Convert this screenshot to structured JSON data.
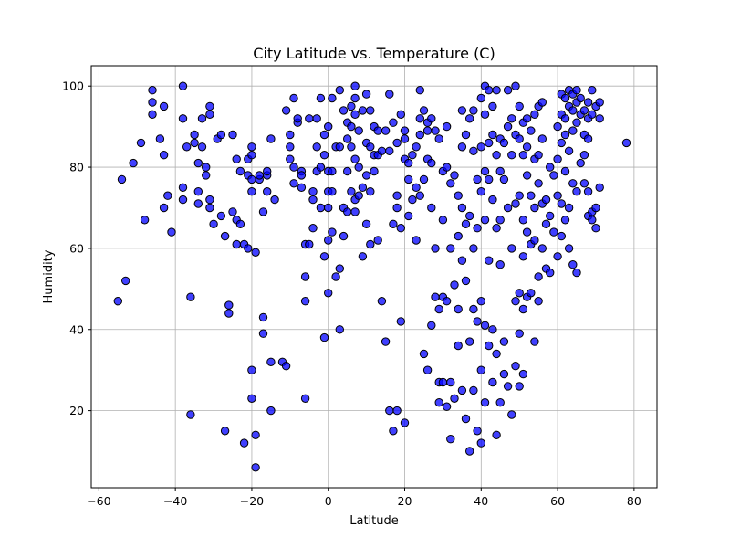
{
  "chart_data": {
    "type": "scatter",
    "title": "City Latitude vs. Temperature (C)",
    "xlabel": "Latitude",
    "ylabel": "Humidity",
    "xlim": [
      -62,
      86
    ],
    "ylim": [
      1,
      105
    ],
    "xticks": [
      -60,
      -40,
      -20,
      0,
      20,
      40,
      60,
      80
    ],
    "yticks": [
      20,
      40,
      60,
      80,
      100
    ],
    "grid": true,
    "marker_face": "#0000ff",
    "marker_alpha": 0.75,
    "marker_edge": "#000000",
    "points": [
      [
        -55,
        47
      ],
      [
        -54,
        77
      ],
      [
        -53,
        52
      ],
      [
        -51,
        81
      ],
      [
        -49,
        86
      ],
      [
        -48,
        67
      ],
      [
        -46,
        99
      ],
      [
        -46,
        93
      ],
      [
        -46,
        96
      ],
      [
        -44,
        87
      ],
      [
        -43,
        83
      ],
      [
        -43,
        95
      ],
      [
        -43,
        70
      ],
      [
        -42,
        73
      ],
      [
        -41,
        64
      ],
      [
        -38,
        100
      ],
      [
        -38,
        92
      ],
      [
        -38,
        75
      ],
      [
        -38,
        72
      ],
      [
        -37,
        85
      ],
      [
        -36,
        19
      ],
      [
        -36,
        48
      ],
      [
        -35,
        88
      ],
      [
        -35,
        86
      ],
      [
        -34,
        81
      ],
      [
        -34,
        74
      ],
      [
        -34,
        71
      ],
      [
        -33,
        92
      ],
      [
        -33,
        85
      ],
      [
        -32,
        80
      ],
      [
        -32,
        78
      ],
      [
        -31,
        95
      ],
      [
        -31,
        93
      ],
      [
        -31,
        70
      ],
      [
        -31,
        72
      ],
      [
        -30,
        66
      ],
      [
        -29,
        87
      ],
      [
        -28,
        68
      ],
      [
        -28,
        88
      ],
      [
        -27,
        63
      ],
      [
        -27,
        15
      ],
      [
        -26,
        46
      ],
      [
        -26,
        44
      ],
      [
        -25,
        88
      ],
      [
        -25,
        69
      ],
      [
        -24,
        61
      ],
      [
        -24,
        82
      ],
      [
        -24,
        67
      ],
      [
        -23,
        79
      ],
      [
        -23,
        66
      ],
      [
        -22,
        61
      ],
      [
        -22,
        12
      ],
      [
        -21,
        78
      ],
      [
        -21,
        82
      ],
      [
        -21,
        60
      ],
      [
        -20,
        77
      ],
      [
        -20,
        83
      ],
      [
        -20,
        85
      ],
      [
        -20,
        74
      ],
      [
        -20,
        30
      ],
      [
        -20,
        23
      ],
      [
        -19,
        59
      ],
      [
        -19,
        6
      ],
      [
        -19,
        14
      ],
      [
        -18,
        77
      ],
      [
        -18,
        78
      ],
      [
        -17,
        39
      ],
      [
        -17,
        43
      ],
      [
        -17,
        69
      ],
      [
        -16,
        78
      ],
      [
        -16,
        79
      ],
      [
        -16,
        74
      ],
      [
        -15,
        32
      ],
      [
        -15,
        20
      ],
      [
        -15,
        87
      ],
      [
        -14,
        72
      ],
      [
        -12,
        32
      ],
      [
        -11,
        31
      ],
      [
        -11,
        94
      ],
      [
        -10,
        88
      ],
      [
        -10,
        85
      ],
      [
        -10,
        82
      ],
      [
        -9,
        80
      ],
      [
        -9,
        76
      ],
      [
        -9,
        97
      ],
      [
        -8,
        91
      ],
      [
        -8,
        92
      ],
      [
        -7,
        79
      ],
      [
        -7,
        75
      ],
      [
        -7,
        78
      ],
      [
        -6,
        47
      ],
      [
        -6,
        23
      ],
      [
        -6,
        53
      ],
      [
        -6,
        61
      ],
      [
        -5,
        92
      ],
      [
        -5,
        61
      ],
      [
        -4,
        74
      ],
      [
        -4,
        72
      ],
      [
        -4,
        65
      ],
      [
        -3,
        85
      ],
      [
        -3,
        79
      ],
      [
        -3,
        92
      ],
      [
        -2,
        97
      ],
      [
        -2,
        80
      ],
      [
        -2,
        70
      ],
      [
        -1,
        88
      ],
      [
        -1,
        83
      ],
      [
        -1,
        38
      ],
      [
        -1,
        58
      ],
      [
        0,
        79
      ],
      [
        0,
        90
      ],
      [
        0,
        74
      ],
      [
        0,
        70
      ],
      [
        0,
        62
      ],
      [
        0,
        49
      ],
      [
        1,
        97
      ],
      [
        1,
        79
      ],
      [
        1,
        74
      ],
      [
        1,
        64
      ],
      [
        2,
        85
      ],
      [
        2,
        53
      ],
      [
        3,
        99
      ],
      [
        3,
        85
      ],
      [
        3,
        40
      ],
      [
        3,
        55
      ],
      [
        4,
        94
      ],
      [
        4,
        70
      ],
      [
        4,
        63
      ],
      [
        5,
        91
      ],
      [
        5,
        87
      ],
      [
        5,
        79
      ],
      [
        5,
        69
      ],
      [
        6,
        95
      ],
      [
        6,
        90
      ],
      [
        6,
        85
      ],
      [
        6,
        74
      ],
      [
        7,
        100
      ],
      [
        7,
        97
      ],
      [
        7,
        93
      ],
      [
        7,
        82
      ],
      [
        7,
        72
      ],
      [
        7,
        69
      ],
      [
        8,
        89
      ],
      [
        8,
        80
      ],
      [
        8,
        73
      ],
      [
        9,
        94
      ],
      [
        9,
        75
      ],
      [
        9,
        58
      ],
      [
        10,
        98
      ],
      [
        10,
        86
      ],
      [
        10,
        78
      ],
      [
        10,
        66
      ],
      [
        11,
        94
      ],
      [
        11,
        85
      ],
      [
        11,
        74
      ],
      [
        11,
        61
      ],
      [
        12,
        90
      ],
      [
        12,
        83
      ],
      [
        12,
        79
      ],
      [
        13,
        89
      ],
      [
        13,
        83
      ],
      [
        13,
        62
      ],
      [
        14,
        84
      ],
      [
        14,
        47
      ],
      [
        15,
        89
      ],
      [
        15,
        37
      ],
      [
        16,
        98
      ],
      [
        16,
        84
      ],
      [
        16,
        20
      ],
      [
        17,
        91
      ],
      [
        17,
        66
      ],
      [
        17,
        15
      ],
      [
        18,
        86
      ],
      [
        18,
        73
      ],
      [
        18,
        70
      ],
      [
        18,
        20
      ],
      [
        19,
        93
      ],
      [
        19,
        65
      ],
      [
        19,
        42
      ],
      [
        20,
        89
      ],
      [
        20,
        87
      ],
      [
        20,
        82
      ],
      [
        20,
        17
      ],
      [
        21,
        81
      ],
      [
        21,
        77
      ],
      [
        21,
        68
      ],
      [
        22,
        72
      ],
      [
        22,
        83
      ],
      [
        23,
        62
      ],
      [
        23,
        85
      ],
      [
        23,
        75
      ],
      [
        24,
        99
      ],
      [
        24,
        92
      ],
      [
        24,
        88
      ],
      [
        24,
        73
      ],
      [
        25,
        94
      ],
      [
        25,
        77
      ],
      [
        25,
        34
      ],
      [
        26,
        91
      ],
      [
        26,
        89
      ],
      [
        26,
        82
      ],
      [
        26,
        30
      ],
      [
        27,
        92
      ],
      [
        27,
        81
      ],
      [
        27,
        70
      ],
      [
        27,
        41
      ],
      [
        28,
        89
      ],
      [
        28,
        60
      ],
      [
        28,
        48
      ],
      [
        29,
        87
      ],
      [
        29,
        45
      ],
      [
        29,
        27
      ],
      [
        29,
        22
      ],
      [
        30,
        79
      ],
      [
        30,
        67
      ],
      [
        30,
        48
      ],
      [
        30,
        27
      ],
      [
        31,
        90
      ],
      [
        31,
        80
      ],
      [
        31,
        47
      ],
      [
        31,
        21
      ],
      [
        32,
        76
      ],
      [
        32,
        60
      ],
      [
        32,
        27
      ],
      [
        32,
        13
      ],
      [
        33,
        78
      ],
      [
        33,
        51
      ],
      [
        33,
        23
      ],
      [
        34,
        73
      ],
      [
        34,
        63
      ],
      [
        34,
        45
      ],
      [
        34,
        36
      ],
      [
        35,
        94
      ],
      [
        35,
        85
      ],
      [
        35,
        70
      ],
      [
        35,
        57
      ],
      [
        35,
        25
      ],
      [
        36,
        88
      ],
      [
        36,
        66
      ],
      [
        36,
        52
      ],
      [
        36,
        18
      ],
      [
        37,
        92
      ],
      [
        37,
        68
      ],
      [
        37,
        37
      ],
      [
        37,
        10
      ],
      [
        38,
        94
      ],
      [
        38,
        84
      ],
      [
        38,
        60
      ],
      [
        38,
        45
      ],
      [
        38,
        25
      ],
      [
        39,
        77
      ],
      [
        39,
        65
      ],
      [
        39,
        42
      ],
      [
        39,
        15
      ],
      [
        40,
        97
      ],
      [
        40,
        85
      ],
      [
        40,
        74
      ],
      [
        40,
        47
      ],
      [
        40,
        30
      ],
      [
        40,
        12
      ],
      [
        41,
        100
      ],
      [
        41,
        93
      ],
      [
        41,
        79
      ],
      [
        41,
        67
      ],
      [
        41,
        41
      ],
      [
        41,
        22
      ],
      [
        42,
        99
      ],
      [
        42,
        86
      ],
      [
        42,
        77
      ],
      [
        42,
        57
      ],
      [
        42,
        36
      ],
      [
        43,
        95
      ],
      [
        43,
        88
      ],
      [
        43,
        72
      ],
      [
        43,
        40
      ],
      [
        43,
        27
      ],
      [
        44,
        99
      ],
      [
        44,
        83
      ],
      [
        44,
        65
      ],
      [
        44,
        34
      ],
      [
        44,
        14
      ],
      [
        45,
        87
      ],
      [
        45,
        79
      ],
      [
        45,
        67
      ],
      [
        45,
        56
      ],
      [
        45,
        22
      ],
      [
        46,
        86
      ],
      [
        46,
        77
      ],
      [
        46,
        37
      ],
      [
        46,
        29
      ],
      [
        47,
        99
      ],
      [
        47,
        90
      ],
      [
        47,
        70
      ],
      [
        47,
        26
      ],
      [
        48,
        92
      ],
      [
        48,
        83
      ],
      [
        48,
        60
      ],
      [
        48,
        19
      ],
      [
        49,
        100
      ],
      [
        49,
        88
      ],
      [
        49,
        71
      ],
      [
        49,
        47
      ],
      [
        49,
        31
      ],
      [
        50,
        95
      ],
      [
        50,
        87
      ],
      [
        50,
        73
      ],
      [
        50,
        49
      ],
      [
        50,
        39
      ],
      [
        50,
        26
      ],
      [
        51,
        91
      ],
      [
        51,
        83
      ],
      [
        51,
        67
      ],
      [
        51,
        58
      ],
      [
        51,
        45
      ],
      [
        51,
        29
      ],
      [
        52,
        92
      ],
      [
        52,
        85
      ],
      [
        52,
        78
      ],
      [
        52,
        64
      ],
      [
        52,
        48
      ],
      [
        53,
        89
      ],
      [
        53,
        73
      ],
      [
        53,
        61
      ],
      [
        53,
        49
      ],
      [
        54,
        93
      ],
      [
        54,
        82
      ],
      [
        54,
        70
      ],
      [
        54,
        62
      ],
      [
        54,
        37
      ],
      [
        55,
        95
      ],
      [
        55,
        83
      ],
      [
        55,
        76
      ],
      [
        55,
        53
      ],
      [
        55,
        47
      ],
      [
        56,
        96
      ],
      [
        56,
        87
      ],
      [
        56,
        71
      ],
      [
        56,
        60
      ],
      [
        57,
        72
      ],
      [
        57,
        66
      ],
      [
        57,
        55
      ],
      [
        58,
        80
      ],
      [
        58,
        68
      ],
      [
        58,
        54
      ],
      [
        59,
        78
      ],
      [
        59,
        64
      ],
      [
        60,
        90
      ],
      [
        60,
        82
      ],
      [
        60,
        73
      ],
      [
        60,
        58
      ],
      [
        61,
        98
      ],
      [
        61,
        93
      ],
      [
        61,
        86
      ],
      [
        61,
        71
      ],
      [
        61,
        63
      ],
      [
        62,
        97
      ],
      [
        62,
        92
      ],
      [
        62,
        88
      ],
      [
        62,
        79
      ],
      [
        62,
        67
      ],
      [
        63,
        99
      ],
      [
        63,
        95
      ],
      [
        63,
        84
      ],
      [
        63,
        70
      ],
      [
        63,
        60
      ],
      [
        64,
        98
      ],
      [
        64,
        94
      ],
      [
        64,
        89
      ],
      [
        64,
        76
      ],
      [
        64,
        56
      ],
      [
        65,
        99
      ],
      [
        65,
        96
      ],
      [
        65,
        91
      ],
      [
        65,
        74
      ],
      [
        65,
        54
      ],
      [
        66,
        97
      ],
      [
        66,
        93
      ],
      [
        66,
        81
      ],
      [
        67,
        94
      ],
      [
        67,
        88
      ],
      [
        67,
        83
      ],
      [
        67,
        76
      ],
      [
        68,
        96
      ],
      [
        68,
        92
      ],
      [
        68,
        87
      ],
      [
        68,
        74
      ],
      [
        68,
        68
      ],
      [
        69,
        99
      ],
      [
        69,
        93
      ],
      [
        69,
        69
      ],
      [
        69,
        67
      ],
      [
        70,
        95
      ],
      [
        70,
        70
      ],
      [
        70,
        65
      ],
      [
        71,
        96
      ],
      [
        71,
        92
      ],
      [
        71,
        75
      ],
      [
        78,
        86
      ]
    ]
  }
}
